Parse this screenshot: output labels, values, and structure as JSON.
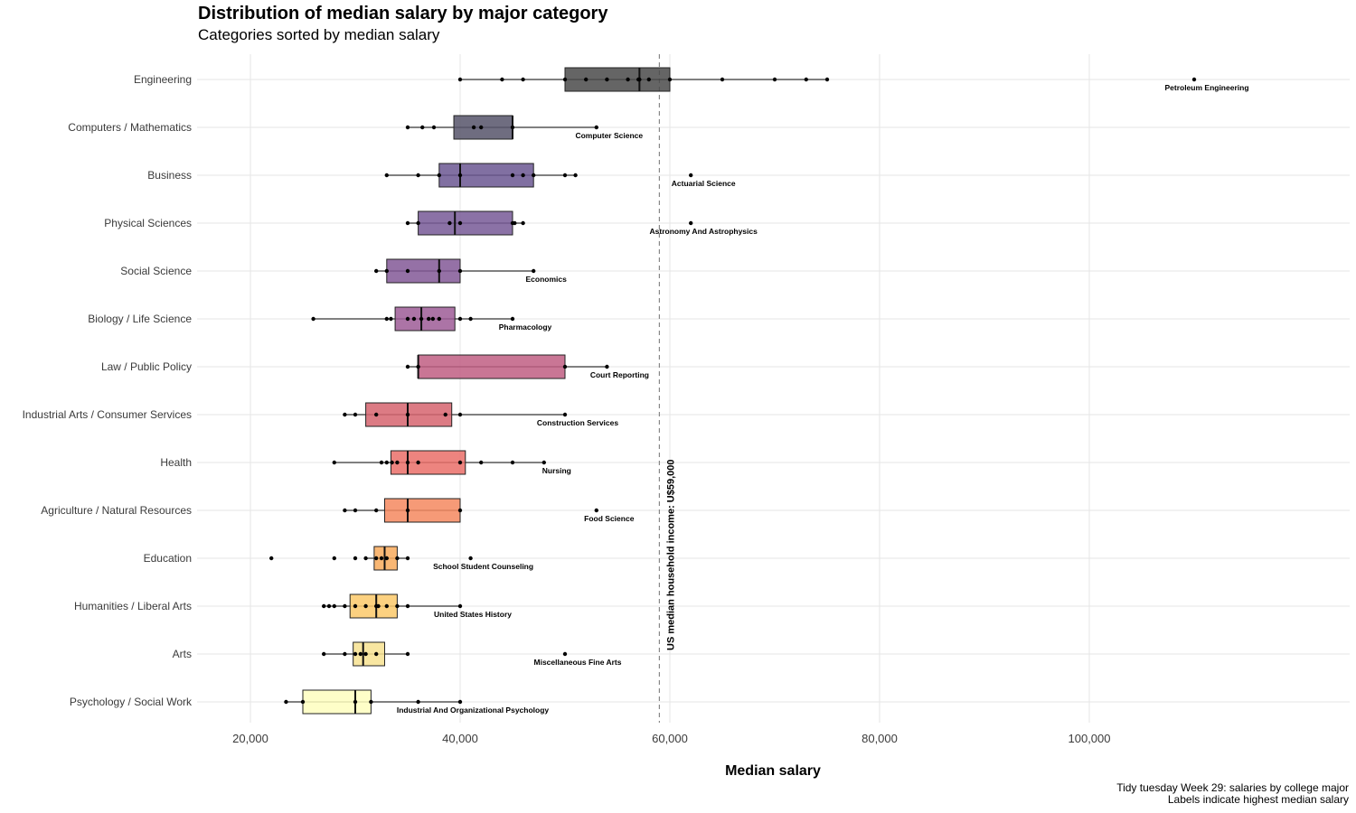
{
  "header": {
    "title": "Distribution of median salary by major category",
    "subtitle": "Categories sorted by median salary"
  },
  "caption": {
    "line1": "Tidy tuesday Week 29: salaries by college major",
    "line2": "Labels indicate highest median salary"
  },
  "chart_data": {
    "type": "boxplot",
    "title": "Distribution of median salary by major category",
    "subtitle": "Categories sorted by median salary",
    "xlabel": "Median salary",
    "ylabel": "",
    "xlim": [
      15000,
      125000
    ],
    "xticks": [
      20000,
      40000,
      60000,
      80000,
      100000
    ],
    "xtick_labels": [
      "20,000",
      "40,000",
      "60,000",
      "80,000",
      "100,000"
    ],
    "grid": true,
    "reference_line": {
      "value": 59000,
      "label": "US median household income: U$59,000"
    },
    "categories": [
      {
        "name": "Engineering",
        "color": "#4a4a4a",
        "box": {
          "min": 40000,
          "q1": 50000,
          "median": 57100,
          "q3": 60000,
          "max": 75000
        },
        "points": [
          40000,
          44000,
          46000,
          50000,
          52000,
          54000,
          56000,
          57000,
          57100,
          58000,
          60000,
          65000,
          70000,
          73000,
          75000,
          110000
        ],
        "top_label": "Petroleum Engineering",
        "top_value": 110000
      },
      {
        "name": "Computers / Mathematics",
        "color": "#56546a",
        "box": {
          "min": 35000,
          "q1": 39400,
          "median": 45000,
          "q3": 45000,
          "max": 53000
        },
        "points": [
          35000,
          36400,
          37500,
          41300,
          42000,
          45000,
          53000
        ],
        "top_label": "Computer Science",
        "top_value": 53000
      },
      {
        "name": "Business",
        "color": "#6b5792",
        "box": {
          "min": 33000,
          "q1": 38000,
          "median": 40000,
          "q3": 47000,
          "max": 51000
        },
        "points": [
          33000,
          36000,
          38000,
          40000,
          45000,
          46000,
          47000,
          50000,
          51000,
          62000
        ],
        "top_label": "Actuarial Science",
        "top_value": 62000
      },
      {
        "name": "Physical Sciences",
        "color": "#775996",
        "box": {
          "min": 35000,
          "q1": 36000,
          "median": 39500,
          "q3": 45000,
          "max": 46000
        },
        "points": [
          35000,
          36000,
          39000,
          40000,
          45000,
          45200,
          46000,
          62000
        ],
        "top_label": "Astronomy And Astrophysics",
        "top_value": 62000
      },
      {
        "name": "Social Science",
        "color": "#835897",
        "box": {
          "min": 32000,
          "q1": 33000,
          "median": 38000,
          "q3": 40000,
          "max": 47000
        },
        "points": [
          32000,
          33000,
          35000,
          38000,
          40000,
          47000
        ],
        "top_label": "Economics",
        "top_value": 47000
      },
      {
        "name": "Biology / Life Science",
        "color": "#9d5c96",
        "box": {
          "min": 26000,
          "q1": 33800,
          "median": 36300,
          "q3": 39500,
          "max": 45000
        },
        "points": [
          26000,
          33000,
          33400,
          35000,
          35600,
          36300,
          37000,
          37400,
          38000,
          40000,
          41000,
          45000
        ],
        "top_label": "Pharmacology",
        "top_value": 45000
      },
      {
        "name": "Law / Public Policy",
        "color": "#bf5e83",
        "box": {
          "min": 35000,
          "q1": 36000,
          "median": 36000,
          "q3": 50000,
          "max": 54000
        },
        "points": [
          35000,
          36000,
          50000,
          54000
        ],
        "top_label": "Court Reporting",
        "top_value": 54000
      },
      {
        "name": "Industrial Arts / Consumer Services",
        "color": "#d6646e",
        "box": {
          "min": 29000,
          "q1": 31000,
          "median": 35000,
          "q3": 39200,
          "max": 50000
        },
        "points": [
          29000,
          30000,
          32000,
          35000,
          38600,
          40000,
          50000
        ],
        "top_label": "Construction Services",
        "top_value": 50000
      },
      {
        "name": "Health",
        "color": "#ea6e69",
        "box": {
          "min": 28000,
          "q1": 33400,
          "median": 35000,
          "q3": 40500,
          "max": 48000
        },
        "points": [
          28000,
          32500,
          33000,
          33500,
          34000,
          35000,
          36000,
          40000,
          42000,
          45000,
          48000
        ],
        "top_label": "Nursing",
        "top_value": 48000
      },
      {
        "name": "Agriculture / Natural Resources",
        "color": "#f4885f",
        "box": {
          "min": 29000,
          "q1": 32800,
          "median": 35000,
          "q3": 40000,
          "max": 40000
        },
        "points": [
          29000,
          30000,
          32000,
          35000,
          40000,
          53000
        ],
        "top_label": "Food Science",
        "top_value": 53000
      },
      {
        "name": "Education",
        "color": "#f8aa5c",
        "box": {
          "min": 31000,
          "q1": 31800,
          "median": 32800,
          "q3": 34000,
          "max": 35000
        },
        "points": [
          22000,
          28000,
          30000,
          31000,
          32000,
          32500,
          33000,
          34000,
          35000,
          41000
        ],
        "top_label": "School Student Counseling",
        "top_value": 41000
      },
      {
        "name": "Humanities / Liberal Arts",
        "color": "#fbc96a",
        "box": {
          "min": 27000,
          "q1": 29500,
          "median": 32000,
          "q3": 34000,
          "max": 40000
        },
        "points": [
          27000,
          27500,
          28000,
          29000,
          30000,
          31000,
          32000,
          32200,
          33000,
          34000,
          35000,
          40000
        ],
        "top_label": "United States History",
        "top_value": 40000
      },
      {
        "name": "Arts",
        "color": "#f7e290",
        "box": {
          "min": 27000,
          "q1": 29800,
          "median": 30750,
          "q3": 32800,
          "max": 35000
        },
        "points": [
          27000,
          29000,
          30000,
          30500,
          31000,
          32000,
          35000,
          50000
        ],
        "top_label": "Miscellaneous Fine Arts",
        "top_value": 50000
      },
      {
        "name": "Psychology / Social Work",
        "color": "#fefebe",
        "box": {
          "min": 23400,
          "q1": 25000,
          "median": 30000,
          "q3": 31500,
          "max": 40000
        },
        "points": [
          23400,
          25000,
          30000,
          31500,
          36000,
          40000
        ],
        "top_label": "Industrial And Organizational Psychology",
        "top_value": 40000
      }
    ]
  }
}
